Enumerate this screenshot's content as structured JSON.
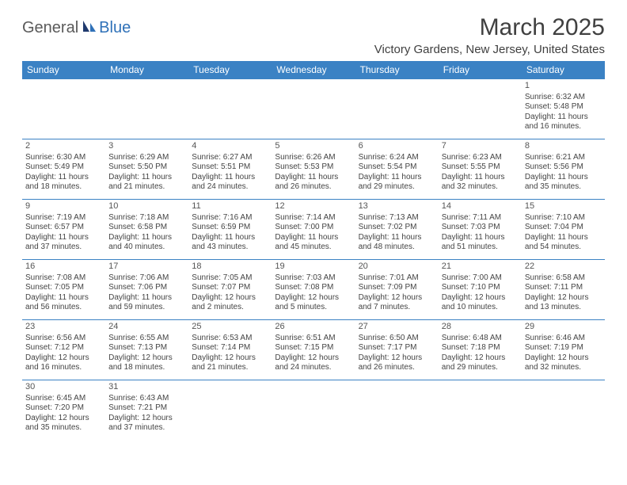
{
  "brand": {
    "part1": "General",
    "part2": "Blue"
  },
  "title": "March 2025",
  "location": "Victory Gardens, New Jersey, United States",
  "colors": {
    "header_bg": "#3b82c4",
    "header_fg": "#ffffff",
    "brand_accent": "#2f71b8",
    "text": "#404040"
  },
  "day_headers": [
    "Sunday",
    "Monday",
    "Tuesday",
    "Wednesday",
    "Thursday",
    "Friday",
    "Saturday"
  ],
  "weeks": [
    [
      null,
      null,
      null,
      null,
      null,
      null,
      {
        "n": "1",
        "sr": "Sunrise: 6:32 AM",
        "ss": "Sunset: 5:48 PM",
        "d1": "Daylight: 11 hours",
        "d2": "and 16 minutes."
      }
    ],
    [
      {
        "n": "2",
        "sr": "Sunrise: 6:30 AM",
        "ss": "Sunset: 5:49 PM",
        "d1": "Daylight: 11 hours",
        "d2": "and 18 minutes."
      },
      {
        "n": "3",
        "sr": "Sunrise: 6:29 AM",
        "ss": "Sunset: 5:50 PM",
        "d1": "Daylight: 11 hours",
        "d2": "and 21 minutes."
      },
      {
        "n": "4",
        "sr": "Sunrise: 6:27 AM",
        "ss": "Sunset: 5:51 PM",
        "d1": "Daylight: 11 hours",
        "d2": "and 24 minutes."
      },
      {
        "n": "5",
        "sr": "Sunrise: 6:26 AM",
        "ss": "Sunset: 5:53 PM",
        "d1": "Daylight: 11 hours",
        "d2": "and 26 minutes."
      },
      {
        "n": "6",
        "sr": "Sunrise: 6:24 AM",
        "ss": "Sunset: 5:54 PM",
        "d1": "Daylight: 11 hours",
        "d2": "and 29 minutes."
      },
      {
        "n": "7",
        "sr": "Sunrise: 6:23 AM",
        "ss": "Sunset: 5:55 PM",
        "d1": "Daylight: 11 hours",
        "d2": "and 32 minutes."
      },
      {
        "n": "8",
        "sr": "Sunrise: 6:21 AM",
        "ss": "Sunset: 5:56 PM",
        "d1": "Daylight: 11 hours",
        "d2": "and 35 minutes."
      }
    ],
    [
      {
        "n": "9",
        "sr": "Sunrise: 7:19 AM",
        "ss": "Sunset: 6:57 PM",
        "d1": "Daylight: 11 hours",
        "d2": "and 37 minutes."
      },
      {
        "n": "10",
        "sr": "Sunrise: 7:18 AM",
        "ss": "Sunset: 6:58 PM",
        "d1": "Daylight: 11 hours",
        "d2": "and 40 minutes."
      },
      {
        "n": "11",
        "sr": "Sunrise: 7:16 AM",
        "ss": "Sunset: 6:59 PM",
        "d1": "Daylight: 11 hours",
        "d2": "and 43 minutes."
      },
      {
        "n": "12",
        "sr": "Sunrise: 7:14 AM",
        "ss": "Sunset: 7:00 PM",
        "d1": "Daylight: 11 hours",
        "d2": "and 45 minutes."
      },
      {
        "n": "13",
        "sr": "Sunrise: 7:13 AM",
        "ss": "Sunset: 7:02 PM",
        "d1": "Daylight: 11 hours",
        "d2": "and 48 minutes."
      },
      {
        "n": "14",
        "sr": "Sunrise: 7:11 AM",
        "ss": "Sunset: 7:03 PM",
        "d1": "Daylight: 11 hours",
        "d2": "and 51 minutes."
      },
      {
        "n": "15",
        "sr": "Sunrise: 7:10 AM",
        "ss": "Sunset: 7:04 PM",
        "d1": "Daylight: 11 hours",
        "d2": "and 54 minutes."
      }
    ],
    [
      {
        "n": "16",
        "sr": "Sunrise: 7:08 AM",
        "ss": "Sunset: 7:05 PM",
        "d1": "Daylight: 11 hours",
        "d2": "and 56 minutes."
      },
      {
        "n": "17",
        "sr": "Sunrise: 7:06 AM",
        "ss": "Sunset: 7:06 PM",
        "d1": "Daylight: 11 hours",
        "d2": "and 59 minutes."
      },
      {
        "n": "18",
        "sr": "Sunrise: 7:05 AM",
        "ss": "Sunset: 7:07 PM",
        "d1": "Daylight: 12 hours",
        "d2": "and 2 minutes."
      },
      {
        "n": "19",
        "sr": "Sunrise: 7:03 AM",
        "ss": "Sunset: 7:08 PM",
        "d1": "Daylight: 12 hours",
        "d2": "and 5 minutes."
      },
      {
        "n": "20",
        "sr": "Sunrise: 7:01 AM",
        "ss": "Sunset: 7:09 PM",
        "d1": "Daylight: 12 hours",
        "d2": "and 7 minutes."
      },
      {
        "n": "21",
        "sr": "Sunrise: 7:00 AM",
        "ss": "Sunset: 7:10 PM",
        "d1": "Daylight: 12 hours",
        "d2": "and 10 minutes."
      },
      {
        "n": "22",
        "sr": "Sunrise: 6:58 AM",
        "ss": "Sunset: 7:11 PM",
        "d1": "Daylight: 12 hours",
        "d2": "and 13 minutes."
      }
    ],
    [
      {
        "n": "23",
        "sr": "Sunrise: 6:56 AM",
        "ss": "Sunset: 7:12 PM",
        "d1": "Daylight: 12 hours",
        "d2": "and 16 minutes."
      },
      {
        "n": "24",
        "sr": "Sunrise: 6:55 AM",
        "ss": "Sunset: 7:13 PM",
        "d1": "Daylight: 12 hours",
        "d2": "and 18 minutes."
      },
      {
        "n": "25",
        "sr": "Sunrise: 6:53 AM",
        "ss": "Sunset: 7:14 PM",
        "d1": "Daylight: 12 hours",
        "d2": "and 21 minutes."
      },
      {
        "n": "26",
        "sr": "Sunrise: 6:51 AM",
        "ss": "Sunset: 7:15 PM",
        "d1": "Daylight: 12 hours",
        "d2": "and 24 minutes."
      },
      {
        "n": "27",
        "sr": "Sunrise: 6:50 AM",
        "ss": "Sunset: 7:17 PM",
        "d1": "Daylight: 12 hours",
        "d2": "and 26 minutes."
      },
      {
        "n": "28",
        "sr": "Sunrise: 6:48 AM",
        "ss": "Sunset: 7:18 PM",
        "d1": "Daylight: 12 hours",
        "d2": "and 29 minutes."
      },
      {
        "n": "29",
        "sr": "Sunrise: 6:46 AM",
        "ss": "Sunset: 7:19 PM",
        "d1": "Daylight: 12 hours",
        "d2": "and 32 minutes."
      }
    ],
    [
      {
        "n": "30",
        "sr": "Sunrise: 6:45 AM",
        "ss": "Sunset: 7:20 PM",
        "d1": "Daylight: 12 hours",
        "d2": "and 35 minutes."
      },
      {
        "n": "31",
        "sr": "Sunrise: 6:43 AM",
        "ss": "Sunset: 7:21 PM",
        "d1": "Daylight: 12 hours",
        "d2": "and 37 minutes."
      },
      null,
      null,
      null,
      null,
      null
    ]
  ]
}
